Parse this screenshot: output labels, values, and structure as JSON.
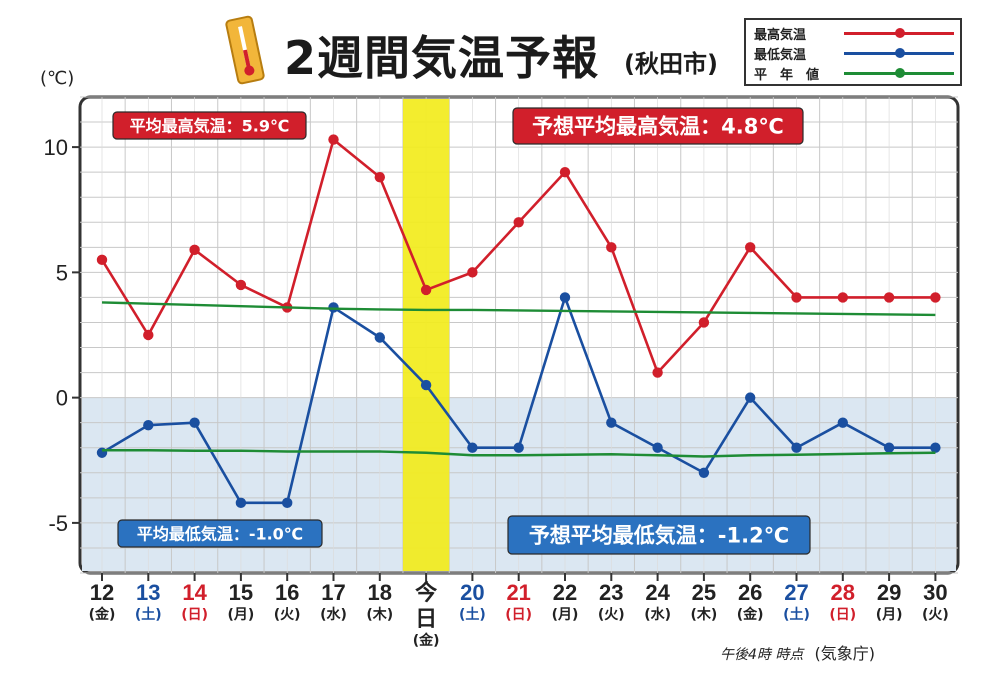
{
  "title": "2週間気温予報",
  "city": "(秋田市)",
  "unit": "(℃)",
  "legend": [
    {
      "label": "最高気温",
      "color": "#d11f2b"
    },
    {
      "label": "最低気温",
      "color": "#1a4fa0"
    },
    {
      "label": "平　年　値",
      "color": "#1e8c35"
    }
  ],
  "credit": {
    "time": "午後4時 時点",
    "source": "(気象庁)"
  },
  "chart_data": {
    "type": "line",
    "ylim": [
      -7,
      12
    ],
    "yticks": [
      10,
      5,
      0,
      -5
    ],
    "ytick_labels": [
      "10",
      "5",
      "0",
      "-5"
    ],
    "grid": true,
    "today_index": 7,
    "x": [
      {
        "date": "12",
        "day": "(金)",
        "color": "black"
      },
      {
        "date": "13",
        "day": "(土)",
        "color": "blue"
      },
      {
        "date": "14",
        "day": "(日)",
        "color": "red"
      },
      {
        "date": "15",
        "day": "(月)",
        "color": "black"
      },
      {
        "date": "16",
        "day": "(火)",
        "color": "black"
      },
      {
        "date": "17",
        "day": "(水)",
        "color": "black"
      },
      {
        "date": "18",
        "day": "(木)",
        "color": "black"
      },
      {
        "date": "今日",
        "day": "(金)",
        "color": "black"
      },
      {
        "date": "20",
        "day": "(土)",
        "color": "blue"
      },
      {
        "date": "21",
        "day": "(日)",
        "color": "red"
      },
      {
        "date": "22",
        "day": "(月)",
        "color": "black"
      },
      {
        "date": "23",
        "day": "(火)",
        "color": "black"
      },
      {
        "date": "24",
        "day": "(水)",
        "color": "black"
      },
      {
        "date": "25",
        "day": "(木)",
        "color": "black"
      },
      {
        "date": "26",
        "day": "(金)",
        "color": "black"
      },
      {
        "date": "27",
        "day": "(土)",
        "color": "blue"
      },
      {
        "date": "28",
        "day": "(日)",
        "color": "red"
      },
      {
        "date": "29",
        "day": "(月)",
        "color": "black"
      },
      {
        "date": "30",
        "day": "(火)",
        "color": "black"
      }
    ],
    "series": [
      {
        "name": "最高気温",
        "color": "#d11f2b",
        "values": [
          5.5,
          2.5,
          5.9,
          4.5,
          3.6,
          10.3,
          8.8,
          4.3,
          5.0,
          7.0,
          9.0,
          6.0,
          1.0,
          3.0,
          6.0,
          4.0,
          4.0,
          4.0,
          4.0
        ]
      },
      {
        "name": "最低気温",
        "color": "#1a4fa0",
        "values": [
          -2.2,
          -1.1,
          -1.0,
          -4.2,
          -4.2,
          3.6,
          2.4,
          0.5,
          -2.0,
          -2.0,
          4.0,
          -1.0,
          -2.0,
          -3.0,
          0.0,
          -2.0,
          -1.0,
          -2.0,
          -2.0
        ]
      },
      {
        "name": "平年値(最高)",
        "color": "#1e8c35",
        "values": [
          3.8,
          3.75,
          3.7,
          3.65,
          3.6,
          3.55,
          3.52,
          3.5,
          3.5,
          3.48,
          3.46,
          3.44,
          3.42,
          3.4,
          3.38,
          3.36,
          3.34,
          3.32,
          3.3
        ]
      },
      {
        "name": "平年値(最低)",
        "color": "#1e8c35",
        "values": [
          -2.1,
          -2.1,
          -2.12,
          -2.12,
          -2.15,
          -2.15,
          -2.15,
          -2.2,
          -2.3,
          -2.3,
          -2.28,
          -2.26,
          -2.3,
          -2.35,
          -2.3,
          -2.28,
          -2.25,
          -2.22,
          -2.2
        ]
      }
    ],
    "annotations": [
      {
        "text": "平均最高気温：5.9℃",
        "color": "#d11f2b"
      },
      {
        "text": "予想平均最高気温：4.8℃",
        "color": "#d11f2b"
      },
      {
        "text": "平均最低気温：-1.0℃",
        "color": "#2b72c0"
      },
      {
        "text": "予想平均最低気温：-1.2℃",
        "color": "#2b72c0"
      }
    ]
  }
}
